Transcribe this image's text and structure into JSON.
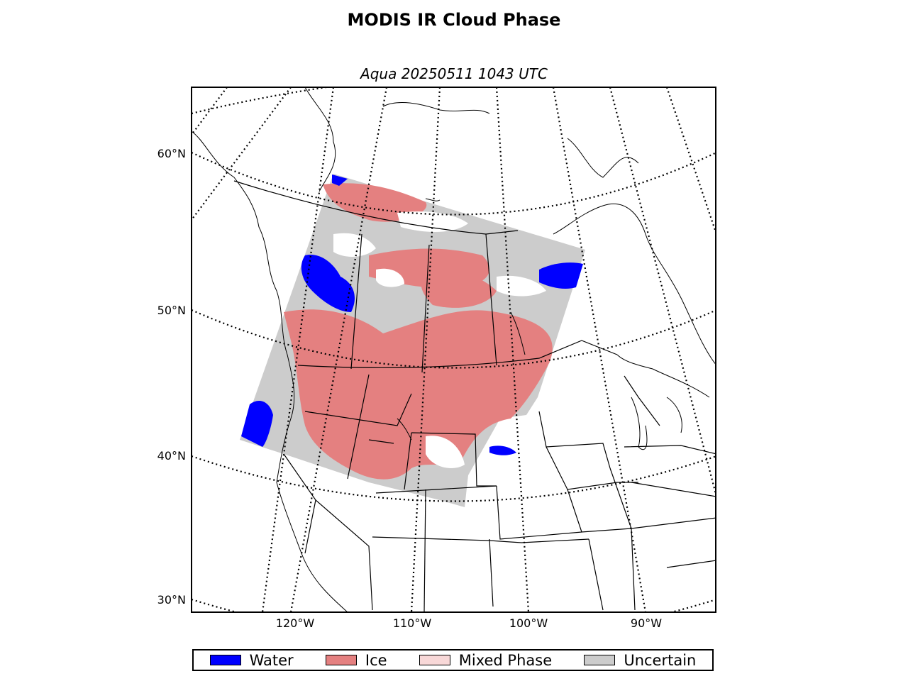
{
  "map": {
    "title": "MODIS IR Cloud Phase",
    "subtitle": "Aqua 20250511 1043 UTC",
    "lat_labels": [
      "60°N",
      "50°N",
      "40°N",
      "30°N"
    ],
    "lon_labels": [
      "120°W",
      "110°W",
      "100°W",
      "90°W"
    ]
  },
  "legend": {
    "items": [
      {
        "label": "Water",
        "color": "#0000ff"
      },
      {
        "label": "Ice",
        "color": "#e48080"
      },
      {
        "label": "Mixed Phase",
        "color": "#f8d8d8"
      },
      {
        "label": "Uncertain",
        "color": "#cccccc"
      }
    ]
  }
}
